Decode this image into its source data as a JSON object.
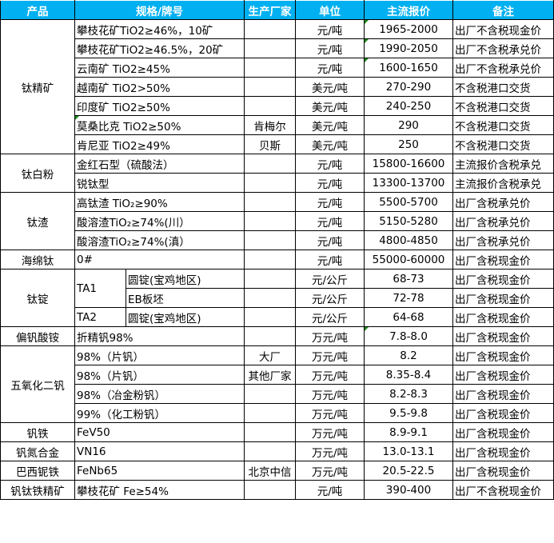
{
  "header": {
    "product": "产品",
    "spec": "规格/牌号",
    "producer": "生产厂家",
    "unit": "单位",
    "price": "主流报价",
    "note": "备注",
    "color": "#00B0F0"
  },
  "groups": [
    {
      "product": "钛精矿",
      "rows": [
        {
          "spec": "攀枝花矿TiO2≥46%，10矿",
          "producer": "",
          "unit": "元/吨",
          "price": "1965-2000",
          "note": "出厂不含税现金价",
          "price_marker": true
        },
        {
          "spec": "攀枝花矿TiO2≥46.5%，20矿",
          "producer": "",
          "unit": "元/吨",
          "price": "1990-2050",
          "note": "出厂不含税承兑价",
          "price_marker": true
        },
        {
          "spec": "云南矿 TiO2≥45%",
          "producer": "",
          "unit": "元/吨",
          "price": "1600-1650",
          "note": "出厂不含税承兑价",
          "price_marker": true
        },
        {
          "spec": "越南矿 TiO2>50%",
          "producer": "",
          "unit": "美元/吨",
          "price": "270-290",
          "note": "不含税港口交货"
        },
        {
          "spec": "印度矿 TiO2≥50%",
          "producer": "",
          "unit": "美元/吨",
          "price": "240-250",
          "note": "不含税港口交货"
        },
        {
          "spec": "莫桑比克 TiO2≥50%",
          "producer": "肯梅尔",
          "unit": "美元/吨",
          "price": "290",
          "note": "不含税港口交货",
          "spec_marker": true
        },
        {
          "spec": "肯尼亚 TiO2≥49%",
          "producer": "贝斯",
          "unit": "美元/吨",
          "price": "250",
          "note": "不含税港口交货"
        }
      ]
    },
    {
      "product": "钛白粉",
      "rows": [
        {
          "spec": "金红石型（硫酸法）",
          "producer": "",
          "unit": "元/吨",
          "price": "15800-16600",
          "note": "主流报价含税承兑"
        },
        {
          "spec": "锐钛型",
          "producer": "",
          "unit": "元/吨",
          "price": "13300-13700",
          "note": "主流报价含税承兑"
        }
      ]
    },
    {
      "product": "钛渣",
      "rows": [
        {
          "spec": "高钛渣 TiO₂≥90%",
          "producer": "",
          "unit": "元/吨",
          "price": "5500-5700",
          "note": "出厂含税承兑价"
        },
        {
          "spec": "酸溶渣TiO₂≥74%(川）",
          "producer": "",
          "unit": "元/吨",
          "price": "5150-5280",
          "note": "出厂含税承兑价"
        },
        {
          "spec": "酸溶渣TiO₂≥74%(滇）",
          "producer": "",
          "unit": "元/吨",
          "price": "4800-4850",
          "note": "出厂含税承兑价"
        }
      ]
    },
    {
      "product": "海绵钛",
      "rows": [
        {
          "spec": "0#",
          "producer": "",
          "unit": "元/吨",
          "price": "55000-60000",
          "note": "出厂含税现金价"
        }
      ]
    },
    {
      "product": "钛锭",
      "grades": [
        {
          "grade": "TA1",
          "rows": [
            {
              "spec": "圆锭(宝鸡地区)",
              "producer": "",
              "unit": "元/公斤",
              "price": "68-73",
              "note": "出厂含税现金价"
            },
            {
              "spec": "EB板坯",
              "producer": "",
              "unit": "元/公斤",
              "price": "72-78",
              "note": "出厂含税现金价"
            }
          ]
        },
        {
          "grade": "TA2",
          "rows": [
            {
              "spec": "圆锭(宝鸡地区)",
              "producer": "",
              "unit": "元/公斤",
              "price": "64-68",
              "note": "出厂含税现金价"
            }
          ]
        }
      ]
    },
    {
      "product": "偏钒酸铵",
      "rows": [
        {
          "spec": "折精钒98%",
          "producer": "",
          "unit": "万元/吨",
          "price": "7.8-8.0",
          "note": "出厂含税现金价",
          "price_marker": true
        }
      ]
    },
    {
      "product": "五氧化二钒",
      "rows": [
        {
          "spec": "98%（片钒）",
          "producer": "大厂",
          "unit": "万元/吨",
          "price": "8.2",
          "note": "出厂含税现金价"
        },
        {
          "spec": "98%（片钒）",
          "producer": "其他厂家",
          "unit": "万元/吨",
          "price": "8.35-8.4",
          "note": "出厂含税现金价"
        },
        {
          "spec": "98%（冶金粉钒）",
          "producer": "",
          "unit": "万元/吨",
          "price": "8.2-8.3",
          "note": "出厂含税现金价"
        },
        {
          "spec": "99%（化工粉钒）",
          "producer": "",
          "unit": "万元/吨",
          "price": "9.5-9.8",
          "note": "出厂含税现金价"
        }
      ]
    },
    {
      "product": "钒铁",
      "rows": [
        {
          "spec": "FeV50",
          "producer": "",
          "unit": "万元/吨",
          "price": "8.9-9.1",
          "note": "出厂含税现金价"
        }
      ]
    },
    {
      "product": "钒氮合金",
      "rows": [
        {
          "spec": "VN16",
          "producer": "",
          "unit": "万元/吨",
          "price": "13.0-13.1",
          "note": "出厂含税现金价"
        }
      ]
    },
    {
      "product": "巴西铌铁",
      "rows": [
        {
          "spec": "FeNb65",
          "producer": "北京中信",
          "unit": "万元/吨",
          "price": "20.5-22.5",
          "note": "出厂含税现金价"
        }
      ]
    },
    {
      "product": "钒钛铁精矿",
      "rows": [
        {
          "spec": "攀枝花矿 Fe≥54%",
          "producer": "",
          "unit": "元/吨",
          "price": "390-400",
          "note": "出厂不含税现金价"
        }
      ]
    }
  ]
}
